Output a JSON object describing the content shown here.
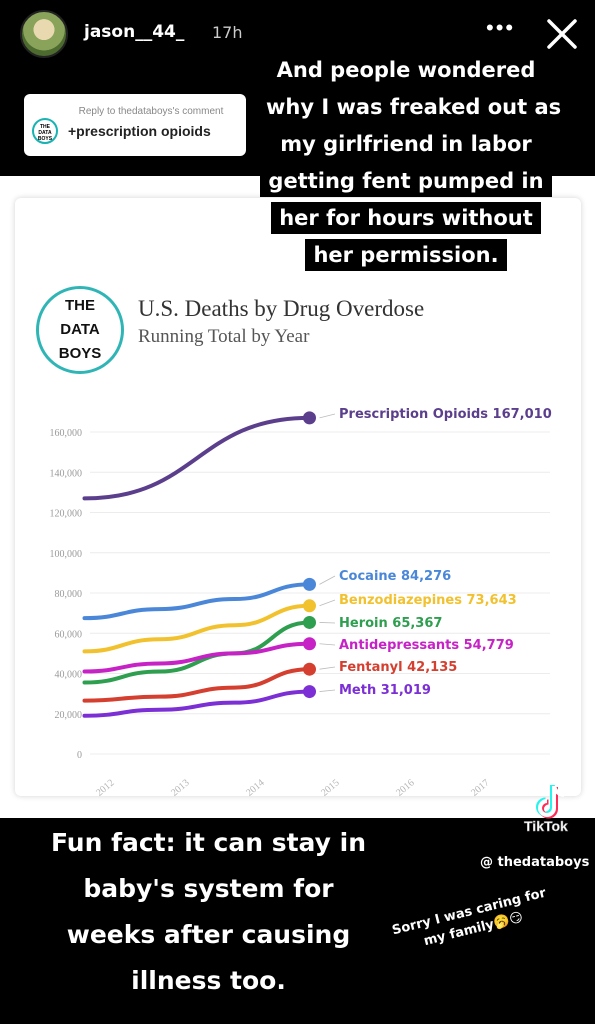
{
  "story": {
    "username": "jason__44_",
    "time_ago": "17h",
    "more_label": "•••",
    "reply": {
      "reply_to": "Reply to thedataboys's comment",
      "text": "+prescription opioids",
      "logo_lines": [
        "THE",
        "DATA",
        "BOYS"
      ]
    },
    "caption_top": [
      "And people wondered",
      "why I was freaked out as",
      "my girlfriend in labor",
      "getting fent pumped in",
      "her for hours without",
      "her permission."
    ],
    "caption_bottom": [
      "Fun fact: it can stay in",
      "baby's system for",
      "weeks after causing",
      "illness too."
    ],
    "sorry_note": [
      "Sorry I was caring for",
      "my family🥱😏"
    ],
    "tiktok_name": "TikTok",
    "tiktok_handle": "@ thedataboys"
  },
  "brand": {
    "logo_lines": [
      "THE",
      "DATA",
      "BOYS"
    ],
    "accent": "#2fb5b5"
  },
  "chart_data": {
    "type": "line",
    "title": "U.S. Deaths by Drug Overdose",
    "subtitle": "Running Total by Year",
    "x_ticks": [
      "2012",
      "2013",
      "2014",
      "2015",
      "2016",
      "2017"
    ],
    "y_ticks": [
      "0",
      "20,000",
      "40,000",
      "60,000",
      "80,000",
      "100,000",
      "120,000",
      "140,000",
      "160,000"
    ],
    "ylim": [
      0,
      160000
    ],
    "xlim": [
      2012,
      2017
    ],
    "grid": true,
    "series": [
      {
        "name": "Prescription Opioids",
        "label": "Prescription Opioids 167,010",
        "color": "#5b3f8c",
        "x": [
          2011.7,
          2014.7
        ],
        "y": [
          127000,
          167010
        ]
      },
      {
        "name": "Cocaine",
        "label": "Cocaine 84,276",
        "color": "#4a87d8",
        "x": [
          2011.7,
          2012.7,
          2013.7,
          2014.7
        ],
        "y": [
          67500,
          72000,
          77000,
          84276
        ]
      },
      {
        "name": "Benzodiazepines",
        "label": "Benzodiazepines 73,643",
        "color": "#f2c12e",
        "x": [
          2011.7,
          2012.7,
          2013.7,
          2014.7
        ],
        "y": [
          51000,
          57000,
          64000,
          73643
        ]
      },
      {
        "name": "Heroin",
        "label": "Heroin 65,367",
        "color": "#2e9e4f",
        "x": [
          2011.7,
          2012.7,
          2013.7,
          2014.7
        ],
        "y": [
          35500,
          41000,
          50000,
          65367
        ]
      },
      {
        "name": "Antidepressants",
        "label": "Antidepressants 54,779",
        "color": "#c622c6",
        "x": [
          2011.7,
          2012.7,
          2013.7,
          2014.7
        ],
        "y": [
          41000,
          45000,
          50000,
          54779
        ]
      },
      {
        "name": "Fentanyl",
        "label": "Fentanyl 42,135",
        "color": "#d43f2f",
        "x": [
          2011.7,
          2012.7,
          2013.7,
          2014.7
        ],
        "y": [
          26500,
          28500,
          33000,
          42135
        ]
      },
      {
        "name": "Meth",
        "label": "Meth 31,019",
        "color": "#7b2fd4",
        "x": [
          2011.7,
          2012.7,
          2013.7,
          2014.7
        ],
        "y": [
          19000,
          22000,
          25500,
          31019
        ]
      }
    ]
  }
}
